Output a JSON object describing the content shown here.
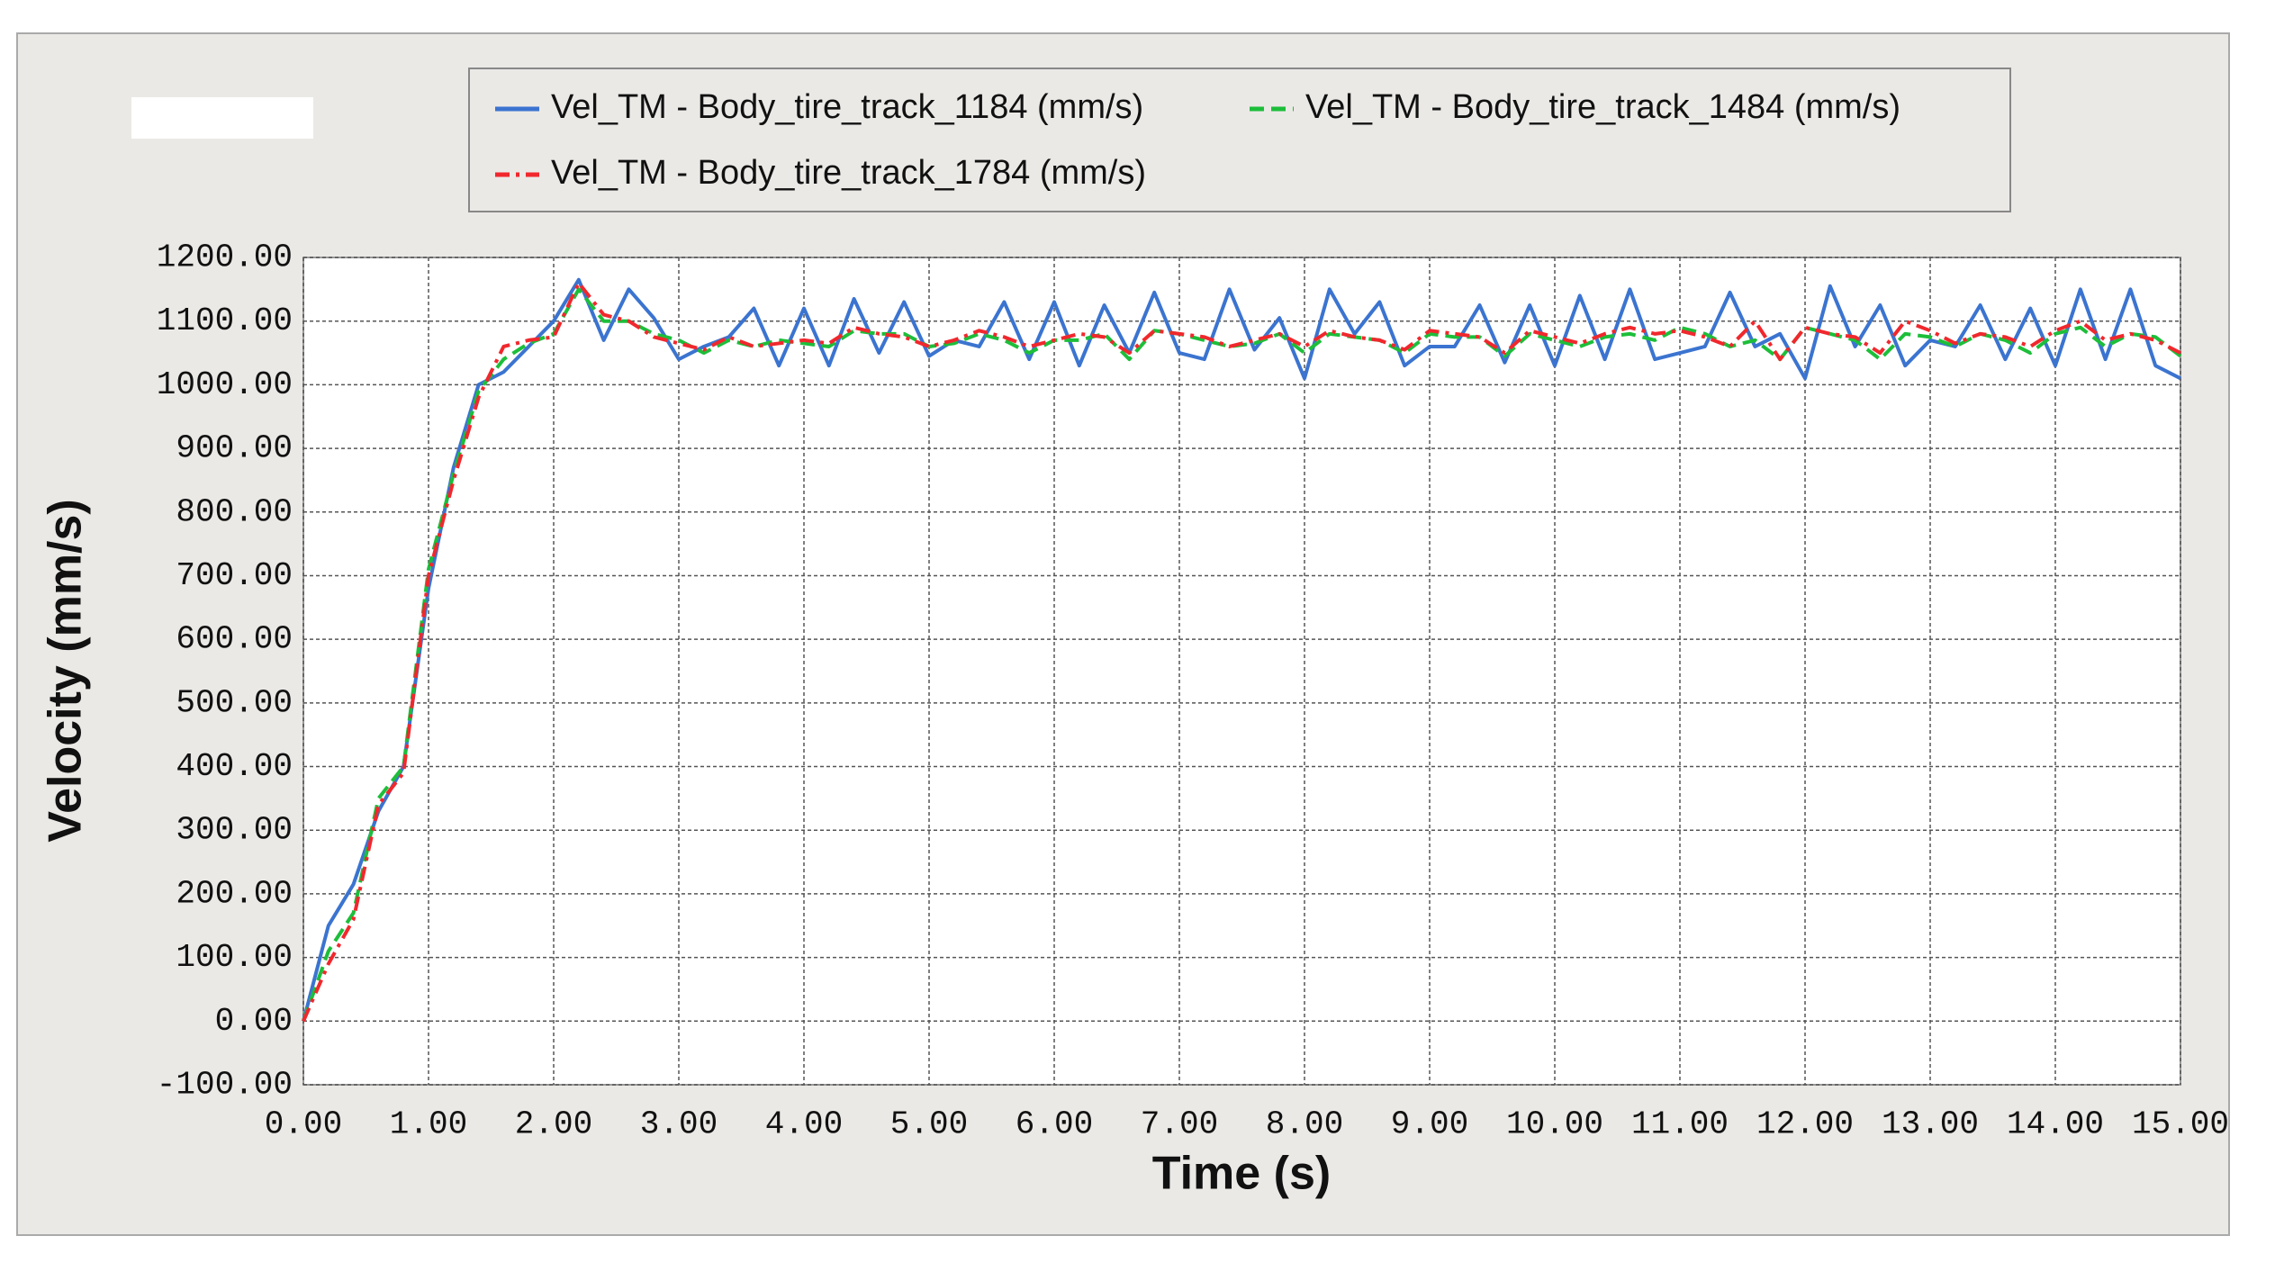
{
  "chart_data": {
    "type": "line",
    "xlabel": "Time (s)",
    "ylabel": "Velocity (mm/s)",
    "x": [
      0,
      0.2,
      0.4,
      0.6,
      0.8,
      1,
      1.2,
      1.4,
      1.6,
      1.8,
      2,
      2.2,
      2.4,
      2.6,
      2.8,
      3,
      3.2,
      3.4,
      3.6,
      3.8,
      4,
      4.2,
      4.4,
      4.6,
      4.8,
      5,
      5.2,
      5.4,
      5.6,
      5.8,
      6,
      6.2,
      6.4,
      6.6,
      6.8,
      7,
      7.2,
      7.4,
      7.6,
      7.8,
      8,
      8.2,
      8.4,
      8.6,
      8.8,
      9,
      9.2,
      9.4,
      9.6,
      9.8,
      10,
      10.2,
      10.4,
      10.6,
      10.8,
      11,
      11.2,
      11.4,
      11.6,
      11.8,
      12,
      12.2,
      12.4,
      12.6,
      12.8,
      13,
      13.2,
      13.4,
      13.6,
      13.8,
      14,
      14.2,
      14.4,
      14.6,
      14.8,
      15
    ],
    "series": [
      {
        "name": "Vel_TM - Body_tire_track_1184 (mm/s)",
        "color": "#3b74d0",
        "dash": "none",
        "values": [
          0,
          150,
          215,
          330,
          400,
          680,
          870,
          1000,
          1020,
          1060,
          1100,
          1165,
          1070,
          1150,
          1105,
          1040,
          1060,
          1075,
          1120,
          1030,
          1120,
          1030,
          1135,
          1050,
          1130,
          1045,
          1070,
          1060,
          1130,
          1040,
          1130,
          1030,
          1125,
          1050,
          1145,
          1050,
          1040,
          1150,
          1055,
          1105,
          1010,
          1150,
          1080,
          1130,
          1030,
          1060,
          1060,
          1125,
          1035,
          1125,
          1030,
          1140,
          1040,
          1150,
          1040,
          1050,
          1060,
          1145,
          1060,
          1080,
          1010,
          1155,
          1060,
          1125,
          1030,
          1070,
          1060,
          1125,
          1040,
          1120,
          1030,
          1150,
          1040,
          1150,
          1030,
          1010
        ]
      },
      {
        "name": "Vel_TM - Body_tire_track_1484 (mm/s)",
        "color": "#1dbe3a",
        "dash": "dashed",
        "values": [
          0,
          110,
          170,
          350,
          400,
          710,
          860,
          990,
          1040,
          1065,
          1080,
          1150,
          1100,
          1100,
          1080,
          1070,
          1050,
          1070,
          1060,
          1070,
          1065,
          1060,
          1085,
          1080,
          1080,
          1060,
          1065,
          1080,
          1070,
          1050,
          1070,
          1070,
          1080,
          1040,
          1085,
          1080,
          1070,
          1060,
          1065,
          1080,
          1050,
          1080,
          1075,
          1070,
          1050,
          1080,
          1075,
          1075,
          1045,
          1080,
          1070,
          1060,
          1075,
          1080,
          1070,
          1090,
          1080,
          1060,
          1070,
          1040,
          1090,
          1080,
          1070,
          1040,
          1080,
          1075,
          1060,
          1080,
          1070,
          1050,
          1080,
          1090,
          1060,
          1080,
          1075,
          1045
        ]
      },
      {
        "name": "Vel_TM - Body_tire_track_1784 (mm/s)",
        "color": "#f0282d",
        "dash": "dashdot",
        "values": [
          0,
          90,
          160,
          340,
          390,
          700,
          850,
          980,
          1060,
          1070,
          1075,
          1160,
          1110,
          1100,
          1075,
          1065,
          1055,
          1075,
          1060,
          1065,
          1070,
          1065,
          1090,
          1080,
          1075,
          1060,
          1070,
          1085,
          1075,
          1060,
          1070,
          1080,
          1075,
          1050,
          1085,
          1080,
          1075,
          1060,
          1070,
          1080,
          1060,
          1085,
          1075,
          1070,
          1055,
          1085,
          1080,
          1075,
          1050,
          1085,
          1075,
          1065,
          1080,
          1090,
          1080,
          1085,
          1075,
          1060,
          1100,
          1040,
          1090,
          1080,
          1075,
          1050,
          1100,
          1085,
          1065,
          1080,
          1075,
          1060,
          1085,
          1100,
          1070,
          1080,
          1070,
          1050
        ]
      }
    ],
    "xlim": [
      0,
      15
    ],
    "ylim": [
      -100,
      1200
    ],
    "xticks": [
      {
        "value": 0,
        "label": "0.00"
      },
      {
        "value": 1,
        "label": "1.00"
      },
      {
        "value": 2,
        "label": "2.00"
      },
      {
        "value": 3,
        "label": "3.00"
      },
      {
        "value": 4,
        "label": "4.00"
      },
      {
        "value": 5,
        "label": "5.00"
      },
      {
        "value": 6,
        "label": "6.00"
      },
      {
        "value": 7,
        "label": "7.00"
      },
      {
        "value": 8,
        "label": "8.00"
      },
      {
        "value": 9,
        "label": "9.00"
      },
      {
        "value": 10,
        "label": "10.00"
      },
      {
        "value": 11,
        "label": "11.00"
      },
      {
        "value": 12,
        "label": "12.00"
      },
      {
        "value": 13,
        "label": "13.00"
      },
      {
        "value": 14,
        "label": "14.00"
      },
      {
        "value": 15,
        "label": "15.00"
      }
    ],
    "yticks": [
      {
        "value": -100,
        "label": "-100.00"
      },
      {
        "value": 0,
        "label": "0.00"
      },
      {
        "value": 100,
        "label": "100.00"
      },
      {
        "value": 200,
        "label": "200.00"
      },
      {
        "value": 300,
        "label": "300.00"
      },
      {
        "value": 400,
        "label": "400.00"
      },
      {
        "value": 500,
        "label": "500.00"
      },
      {
        "value": 600,
        "label": "600.00"
      },
      {
        "value": 700,
        "label": "700.00"
      },
      {
        "value": 800,
        "label": "800.00"
      },
      {
        "value": 900,
        "label": "900.00"
      },
      {
        "value": 1000,
        "label": "1000.00"
      },
      {
        "value": 1100,
        "label": "1100.00"
      },
      {
        "value": 1200,
        "label": "1200.00"
      }
    ],
    "grid": true
  }
}
